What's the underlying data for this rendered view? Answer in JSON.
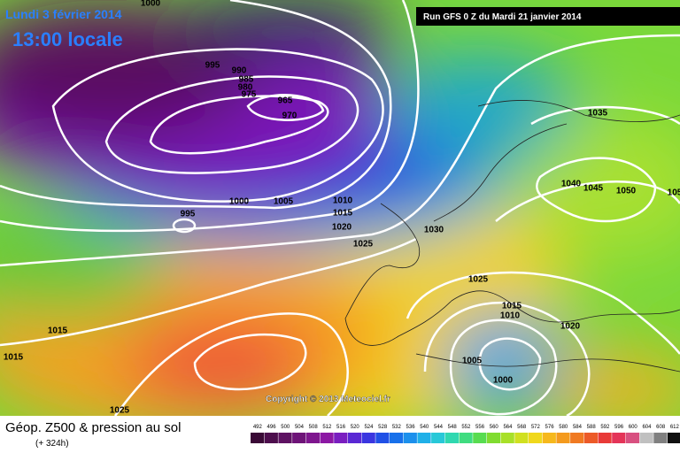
{
  "header": {
    "date": "Lundi 3 février 2014",
    "time": "13:00 locale",
    "run": "Run GFS 0 Z du Mardi 21 janvier 2014"
  },
  "isobar_labels": [
    "1000",
    "995",
    "990",
    "985",
    "980",
    "975",
    "965",
    "970",
    "995",
    "1000",
    "1005",
    "1010",
    "1015",
    "1020",
    "1025",
    "1030",
    "1035",
    "1040",
    "1045",
    "1050",
    "105",
    "1025",
    "1015",
    "1010",
    "1020",
    "1005",
    "1000",
    "1015",
    "1015",
    "1025"
  ],
  "copyright": "Copyright © 2013 Meteociel.fr",
  "footer": {
    "title": "Géop. Z500 & pression au sol",
    "lead": "(+ 324h)"
  },
  "scale": [
    "492",
    "496",
    "500",
    "504",
    "508",
    "512",
    "516",
    "520",
    "524",
    "528",
    "532",
    "536",
    "540",
    "544",
    "548",
    "552",
    "556",
    "560",
    "564",
    "568",
    "572",
    "576",
    "580",
    "584",
    "588",
    "592",
    "596",
    "600",
    "604",
    "608",
    "612"
  ]
}
